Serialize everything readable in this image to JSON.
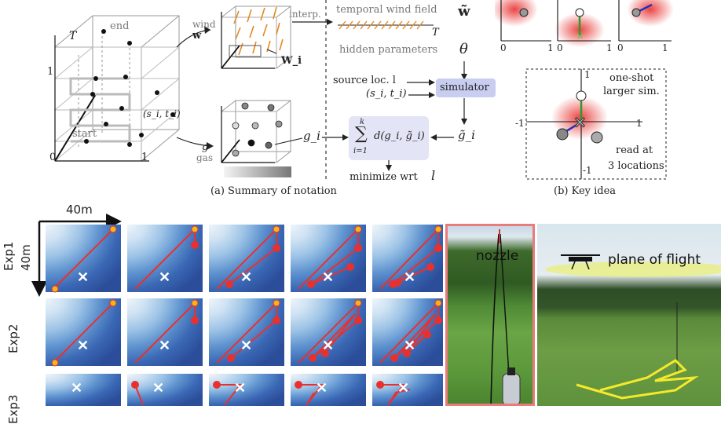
{
  "fig_a": {
    "caption": "(a) Summary of notation",
    "axis_T": "T",
    "axis_one_y": "1",
    "axis_zero": "0",
    "axis_one_x": "1",
    "end_label": "end",
    "start_label": "start",
    "point_label": "(s_i, t_i)",
    "wind_label": "wind",
    "wind_symbol": "w",
    "wind_i_symbol": "W_i",
    "gas_symbol": "g",
    "gas_label": "gas",
    "interp_label": "interp.",
    "temporal_wind_label": "temporal wind field",
    "temporal_T": "T",
    "w_tilde": "w̃",
    "hidden_params_label": "hidden parameters",
    "theta": "θ",
    "source_loc_label": "source loc. l",
    "si_ti_label": "(s_i, t_i)",
    "simulator_label": "simulator",
    "g_i_label": "g_i",
    "g_tilde_label": "g̃_i",
    "sum_top": "k",
    "sum_expr": "d(g_i, g̃_i)",
    "sum_bottom": "i=1",
    "minimize_label": "minimize wrt",
    "minimize_var": "l"
  },
  "fig_b": {
    "caption": "(b) Key idea",
    "small_axis_zero": "0",
    "small_axis_one": "1",
    "axis_neg_one_x": "-1",
    "axis_one_x": "1",
    "axis_one_y": "1",
    "axis_neg_one_y": "-1",
    "one_shot_line1": "one-shot",
    "one_shot_line2": "larger sim.",
    "read_line1": "read at",
    "read_line2": "3 locations"
  },
  "grid": {
    "scale_label_x": "40m",
    "scale_label_y": "40m",
    "rows": [
      "Exp1",
      "Exp2",
      "Exp3"
    ]
  },
  "photos": {
    "nozzle_label": "nozzle",
    "plane_label": "plane of flight"
  },
  "colors": {
    "accent_red": "#e8312f",
    "sim_box": "#c9cdf0",
    "blue_dark": "#2c4e9a",
    "orange_arrow": "#e58a1f",
    "photo_frame": "#e97b7b"
  }
}
